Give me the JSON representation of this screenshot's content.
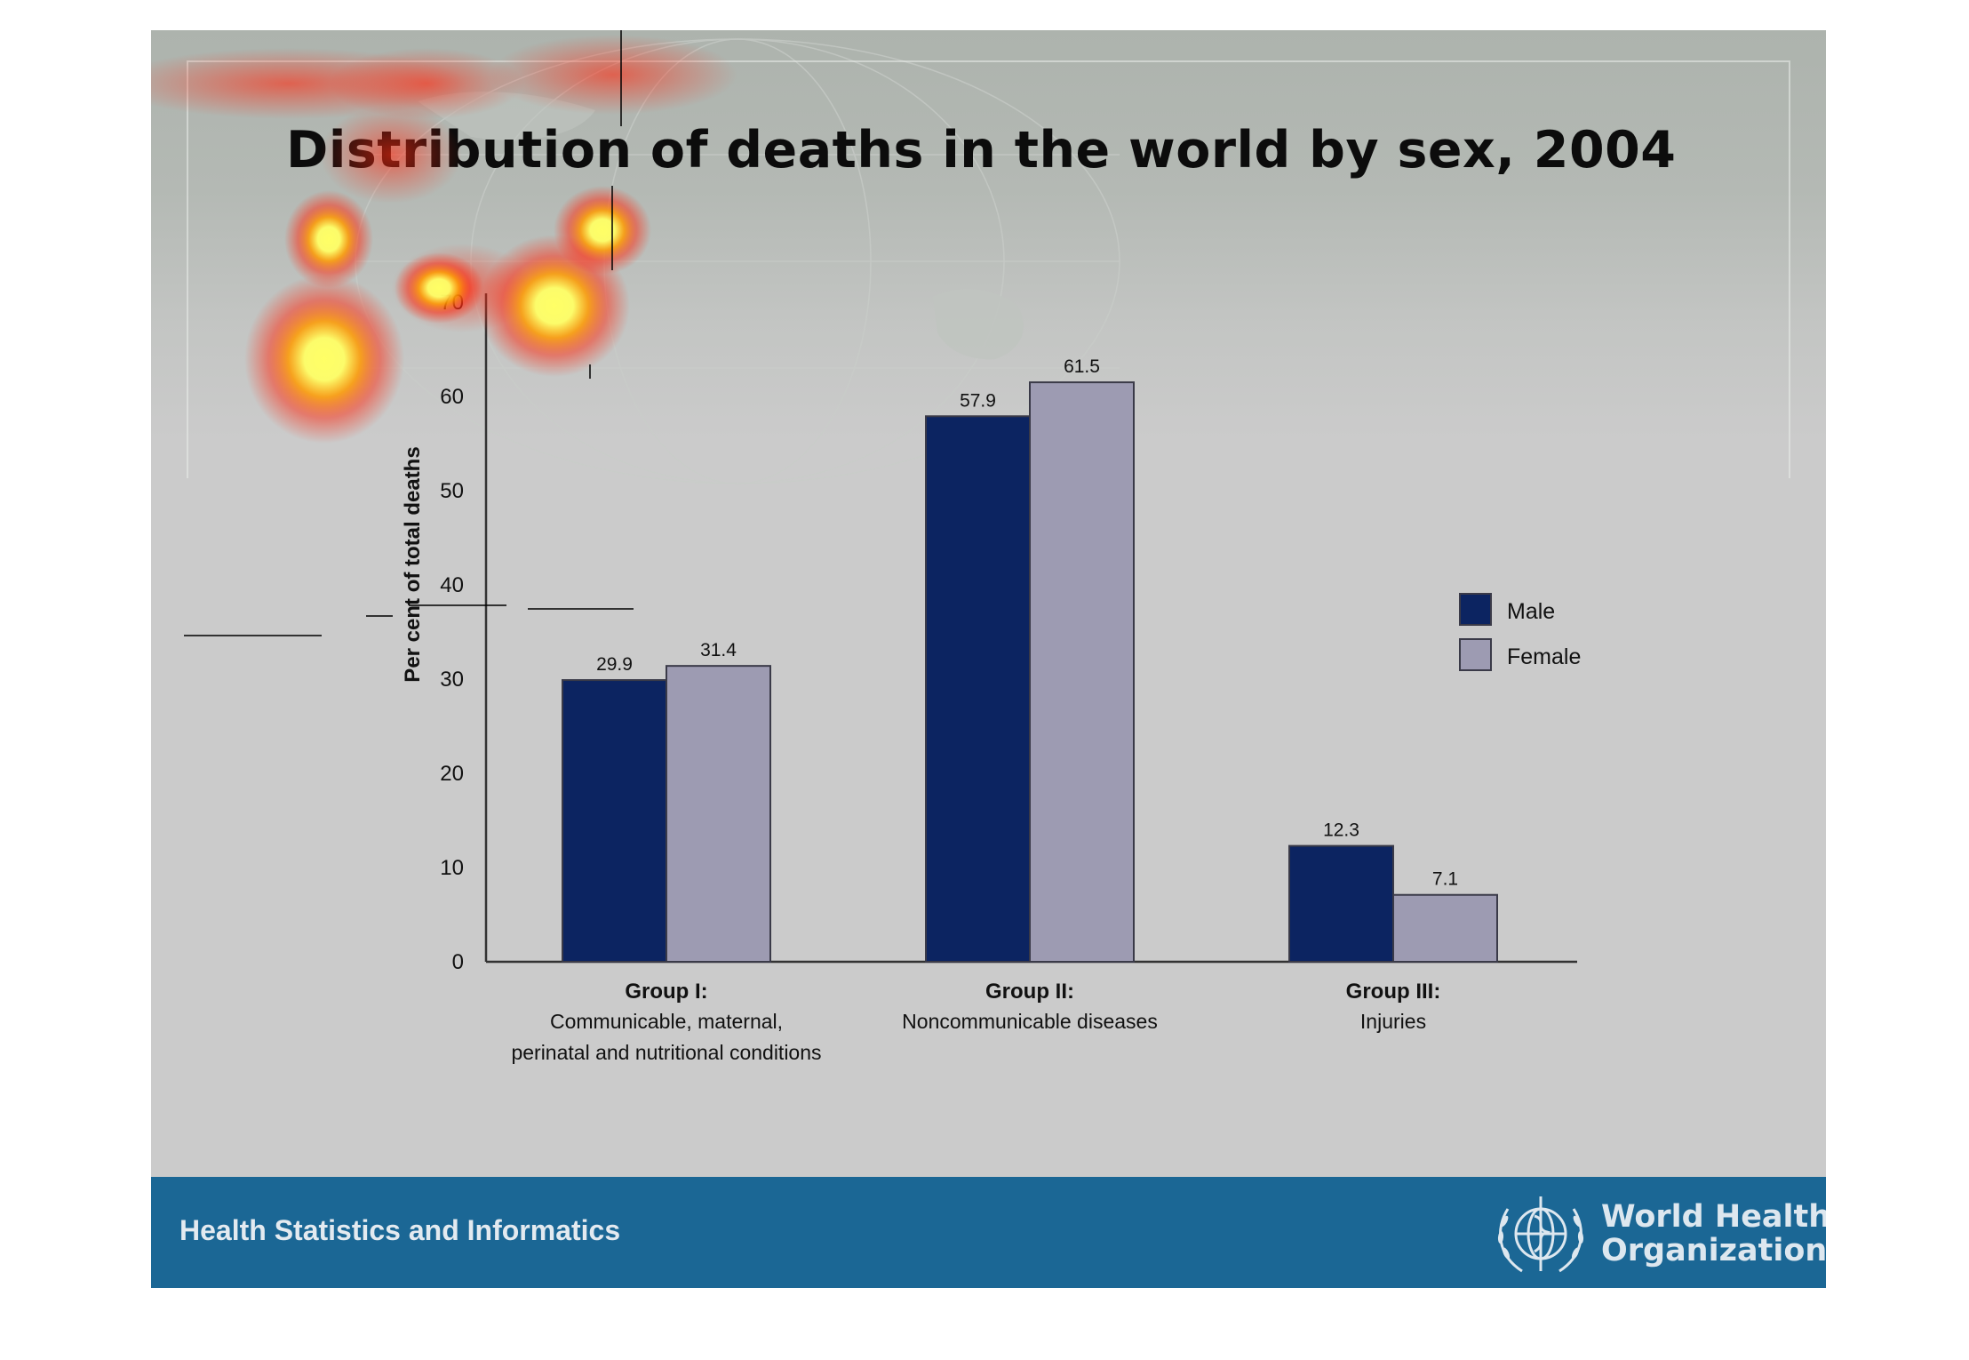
{
  "slide": {
    "title": "Distribution of deaths in the world by sex, 2004"
  },
  "footer": {
    "left_text": "Health Statistics and Informatics",
    "org_name_line1": "World Health",
    "org_name_line2": "Organization",
    "logo_icon": "who-emblem-icon",
    "bar_color": "#1b6795"
  },
  "chart_data": {
    "type": "bar",
    "title": "",
    "xlabel": "",
    "ylabel": "Per cent of total deaths",
    "ylim": [
      0,
      70
    ],
    "yticks": [
      0,
      10,
      20,
      30,
      40,
      50,
      60,
      70
    ],
    "grid": false,
    "legend_position": "right",
    "categories": [
      {
        "title": "Group I:",
        "lines": [
          "Communicable, maternal,",
          "perinatal and nutritional conditions"
        ]
      },
      {
        "title": "Group II:",
        "lines": [
          "Noncommunicable diseases"
        ]
      },
      {
        "title": "Group III:",
        "lines": [
          "Injuries"
        ]
      }
    ],
    "series": [
      {
        "name": "Male",
        "color": "#0c2461",
        "values": [
          29.9,
          57.9,
          12.3
        ],
        "labels": [
          "29.9",
          "57.9",
          "12.3"
        ]
      },
      {
        "name": "Female",
        "color": "#9d9bb2",
        "values": [
          31.4,
          61.5,
          7.1
        ],
        "labels": [
          "31.4",
          "61.5",
          "7.1"
        ]
      }
    ]
  },
  "overlay": {
    "heatmap_colors": [
      "#ff2a10",
      "#ff9a00",
      "#ffff66"
    ]
  }
}
